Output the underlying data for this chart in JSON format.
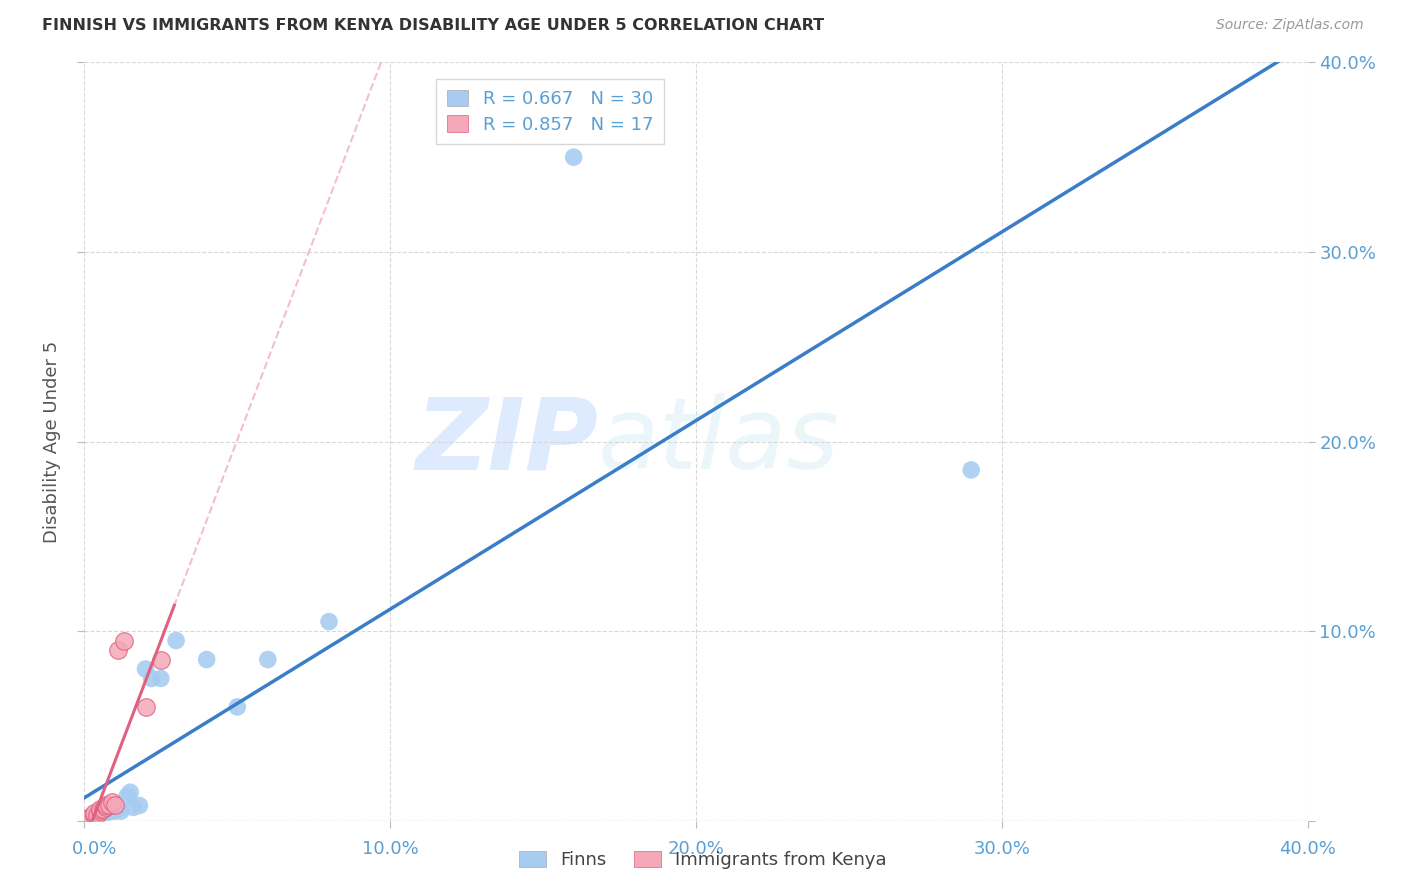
{
  "title": "FINNISH VS IMMIGRANTS FROM KENYA DISABILITY AGE UNDER 5 CORRELATION CHART",
  "source": "Source: ZipAtlas.com",
  "ylabel": "Disability Age Under 5",
  "xlim": [
    0.0,
    0.4
  ],
  "ylim": [
    0.0,
    0.4
  ],
  "xtick_vals": [
    0.0,
    0.1,
    0.2,
    0.3,
    0.4
  ],
  "ytick_vals": [
    0.0,
    0.1,
    0.2,
    0.3,
    0.4
  ],
  "finns_color": "#A8CCF0",
  "immigrants_color": "#F4A8B8",
  "finns_line_color": "#3A7EC8",
  "immigrants_line_color": "#E06080",
  "immigrants_dash_color": "#F0B0C0",
  "legend_r_finns": "R = 0.667",
  "legend_n_finns": "N = 30",
  "legend_r_immigrants": "R = 0.857",
  "legend_n_immigrants": "N = 17",
  "label_color": "#5A9FD4",
  "background_color": "#ffffff",
  "grid_color": "#d0d0d0",
  "watermark_zip": "ZIP",
  "watermark_atlas": "atlas",
  "finns_x": [
    0.001,
    0.002,
    0.003,
    0.003,
    0.004,
    0.004,
    0.005,
    0.005,
    0.006,
    0.006,
    0.007,
    0.008,
    0.009,
    0.01,
    0.011,
    0.012,
    0.014,
    0.015,
    0.016,
    0.018,
    0.02,
    0.022,
    0.025,
    0.03,
    0.04,
    0.05,
    0.06,
    0.08,
    0.16,
    0.29
  ],
  "finns_y": [
    0.001,
    0.002,
    0.001,
    0.003,
    0.002,
    0.003,
    0.002,
    0.004,
    0.003,
    0.004,
    0.004,
    0.005,
    0.005,
    0.005,
    0.006,
    0.005,
    0.013,
    0.015,
    0.007,
    0.008,
    0.08,
    0.075,
    0.075,
    0.095,
    0.085,
    0.06,
    0.085,
    0.105,
    0.35,
    0.185
  ],
  "immigrants_x": [
    0.001,
    0.002,
    0.003,
    0.003,
    0.004,
    0.005,
    0.005,
    0.006,
    0.007,
    0.007,
    0.008,
    0.009,
    0.01,
    0.011,
    0.013,
    0.02,
    0.025
  ],
  "immigrants_y": [
    0.001,
    0.002,
    0.003,
    0.004,
    0.003,
    0.005,
    0.006,
    0.006,
    0.007,
    0.008,
    0.008,
    0.01,
    0.008,
    0.09,
    0.095,
    0.06,
    0.085
  ]
}
